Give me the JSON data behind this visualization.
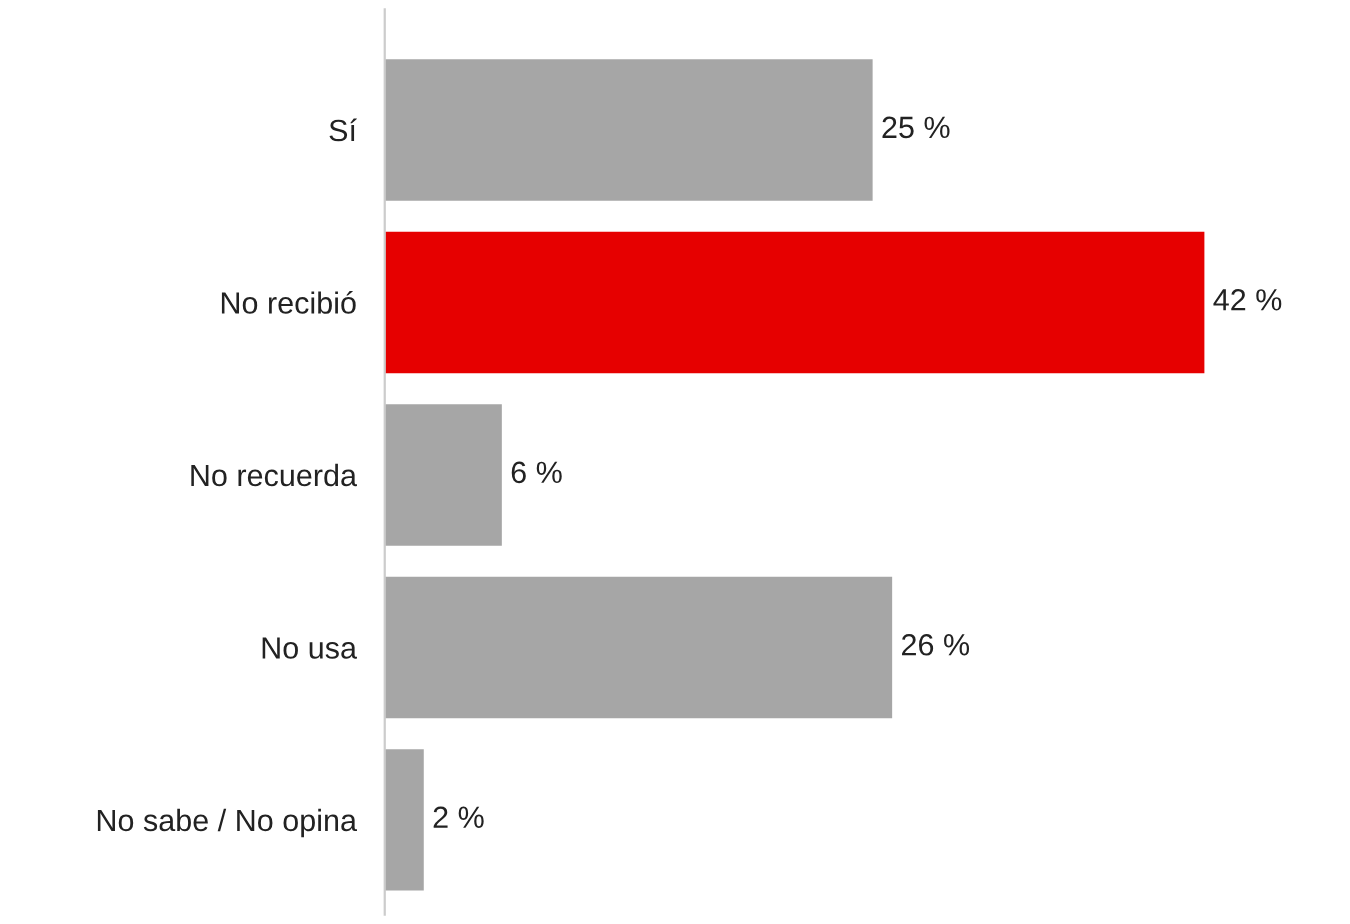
{
  "chart_data": {
    "type": "bar",
    "orientation": "horizontal",
    "categories": [
      "Sí",
      "No recibió",
      "No recuerda",
      "No usa",
      "No sabe / No opina"
    ],
    "values": [
      25,
      42,
      6,
      26,
      2
    ],
    "colors": [
      "#a6a6a6",
      "#e60000",
      "#a6a6a6",
      "#a6a6a6",
      "#a6a6a6"
    ],
    "value_labels": [
      "25 %",
      "42 %",
      "6 %",
      "26 %",
      "2 %"
    ],
    "grid": false,
    "legend": false
  }
}
